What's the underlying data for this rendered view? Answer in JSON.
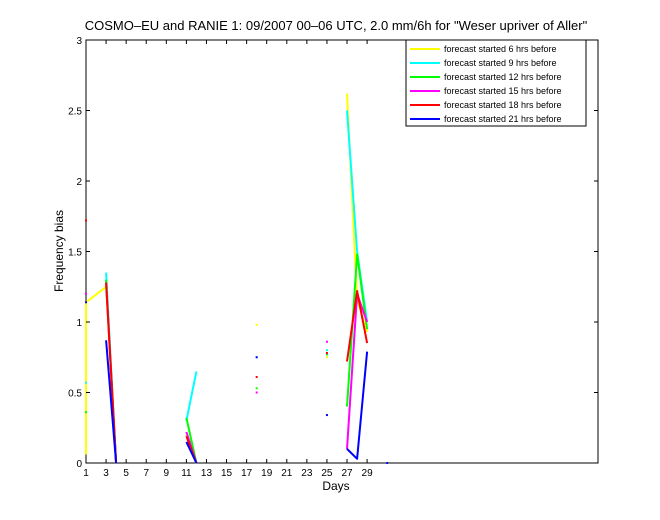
{
  "chart_data": {
    "type": "line",
    "title": "COSMO–EU and RANIE 1: 09/2007 00–06 UTC, 2.0 mm/6h for \"Weser upriver of Aller\"",
    "xlabel": "Days",
    "ylabel": "Frequency bias",
    "xlim": [
      1,
      52
    ],
    "ylim": [
      0,
      3
    ],
    "xticks": [
      1,
      3,
      5,
      7,
      9,
      11,
      13,
      15,
      17,
      19,
      21,
      23,
      25,
      27,
      29
    ],
    "yticks": [
      0,
      0.5,
      1,
      1.5,
      2,
      2.5,
      3
    ],
    "yticklabels": [
      "0",
      "0.5",
      "1",
      "1.5",
      "2",
      "2.5",
      "3"
    ],
    "grid": false,
    "legend_position": "top-right",
    "series": [
      {
        "name": "forecast started 6 hrs before",
        "color": "#ffff00",
        "points": [
          [
            1,
            0.06
          ],
          [
            1,
            1.14
          ],
          [
            3,
            1.25
          ],
          [
            4,
            0.0
          ],
          [
            null,
            null
          ],
          [
            11,
            0.2
          ],
          [
            12,
            0.0
          ],
          [
            null,
            null
          ],
          [
            18,
            0.98
          ],
          [
            null,
            null
          ],
          [
            25,
            0.75
          ],
          [
            null,
            null
          ],
          [
            27,
            2.62
          ],
          [
            28,
            1.16
          ],
          [
            29,
            0.93
          ],
          [
            null,
            null
          ],
          [
            31,
            0.0
          ]
        ]
      },
      {
        "name": "forecast started 9 hrs before",
        "color": "#00ffff",
        "points": [
          [
            1,
            0.57
          ],
          [
            null,
            null
          ],
          [
            3,
            1.35
          ],
          [
            4,
            0.0
          ],
          [
            null,
            null
          ],
          [
            11,
            0.3
          ],
          [
            12,
            0.65
          ],
          [
            null,
            null
          ],
          [
            18,
            0.75
          ],
          [
            null,
            null
          ],
          [
            25,
            0.8
          ],
          [
            null,
            null
          ],
          [
            27,
            2.5
          ],
          [
            28,
            1.5
          ],
          [
            29,
            1.0
          ]
        ]
      },
      {
        "name": "forecast started 12 hrs before",
        "color": "#00ff00",
        "points": [
          [
            1,
            0.36
          ],
          [
            null,
            null
          ],
          [
            3,
            1.3
          ],
          [
            4,
            0.0
          ],
          [
            null,
            null
          ],
          [
            11,
            0.32
          ],
          [
            12,
            0.0
          ],
          [
            null,
            null
          ],
          [
            18,
            0.53
          ],
          [
            null,
            null
          ],
          [
            25,
            0.77
          ],
          [
            null,
            null
          ],
          [
            27,
            0.4
          ],
          [
            28,
            1.48
          ],
          [
            29,
            0.95
          ]
        ]
      },
      {
        "name": "forecast started 15 hrs before",
        "color": "#ff00ff",
        "points": [
          [
            1,
            1.2
          ],
          [
            null,
            null
          ],
          [
            3,
            1.28
          ],
          [
            4,
            0.0
          ],
          [
            null,
            null
          ],
          [
            11,
            0.22
          ],
          [
            12,
            0.0
          ],
          [
            null,
            null
          ],
          [
            18,
            0.5
          ],
          [
            null,
            null
          ],
          [
            25,
            0.86
          ],
          [
            null,
            null
          ],
          [
            27,
            0.1
          ],
          [
            28,
            1.2
          ],
          [
            29,
            1.0
          ]
        ]
      },
      {
        "name": "forecast started 18 hrs before",
        "color": "#ff0000",
        "points": [
          [
            1,
            1.72
          ],
          [
            null,
            null
          ],
          [
            3,
            1.28
          ],
          [
            4,
            0.0
          ],
          [
            null,
            null
          ],
          [
            11,
            0.19
          ],
          [
            12,
            0.0
          ],
          [
            null,
            null
          ],
          [
            18,
            0.61
          ],
          [
            null,
            null
          ],
          [
            25,
            0.78
          ],
          [
            null,
            null
          ],
          [
            27,
            0.72
          ],
          [
            28,
            1.22
          ],
          [
            29,
            0.85
          ]
        ]
      },
      {
        "name": "forecast started 21 hrs before",
        "color": "#0000ff",
        "points": [
          [
            1,
            1.14
          ],
          [
            null,
            null
          ],
          [
            3,
            0.87
          ],
          [
            4,
            0.0
          ],
          [
            null,
            null
          ],
          [
            11,
            0.15
          ],
          [
            12,
            0.0
          ],
          [
            null,
            null
          ],
          [
            18,
            0.75
          ],
          [
            null,
            null
          ],
          [
            25,
            0.34
          ],
          [
            null,
            null
          ],
          [
            27,
            0.1
          ],
          [
            28,
            0.03
          ],
          [
            29,
            0.79
          ],
          [
            null,
            null
          ],
          [
            31,
            0.0
          ]
        ]
      }
    ]
  }
}
